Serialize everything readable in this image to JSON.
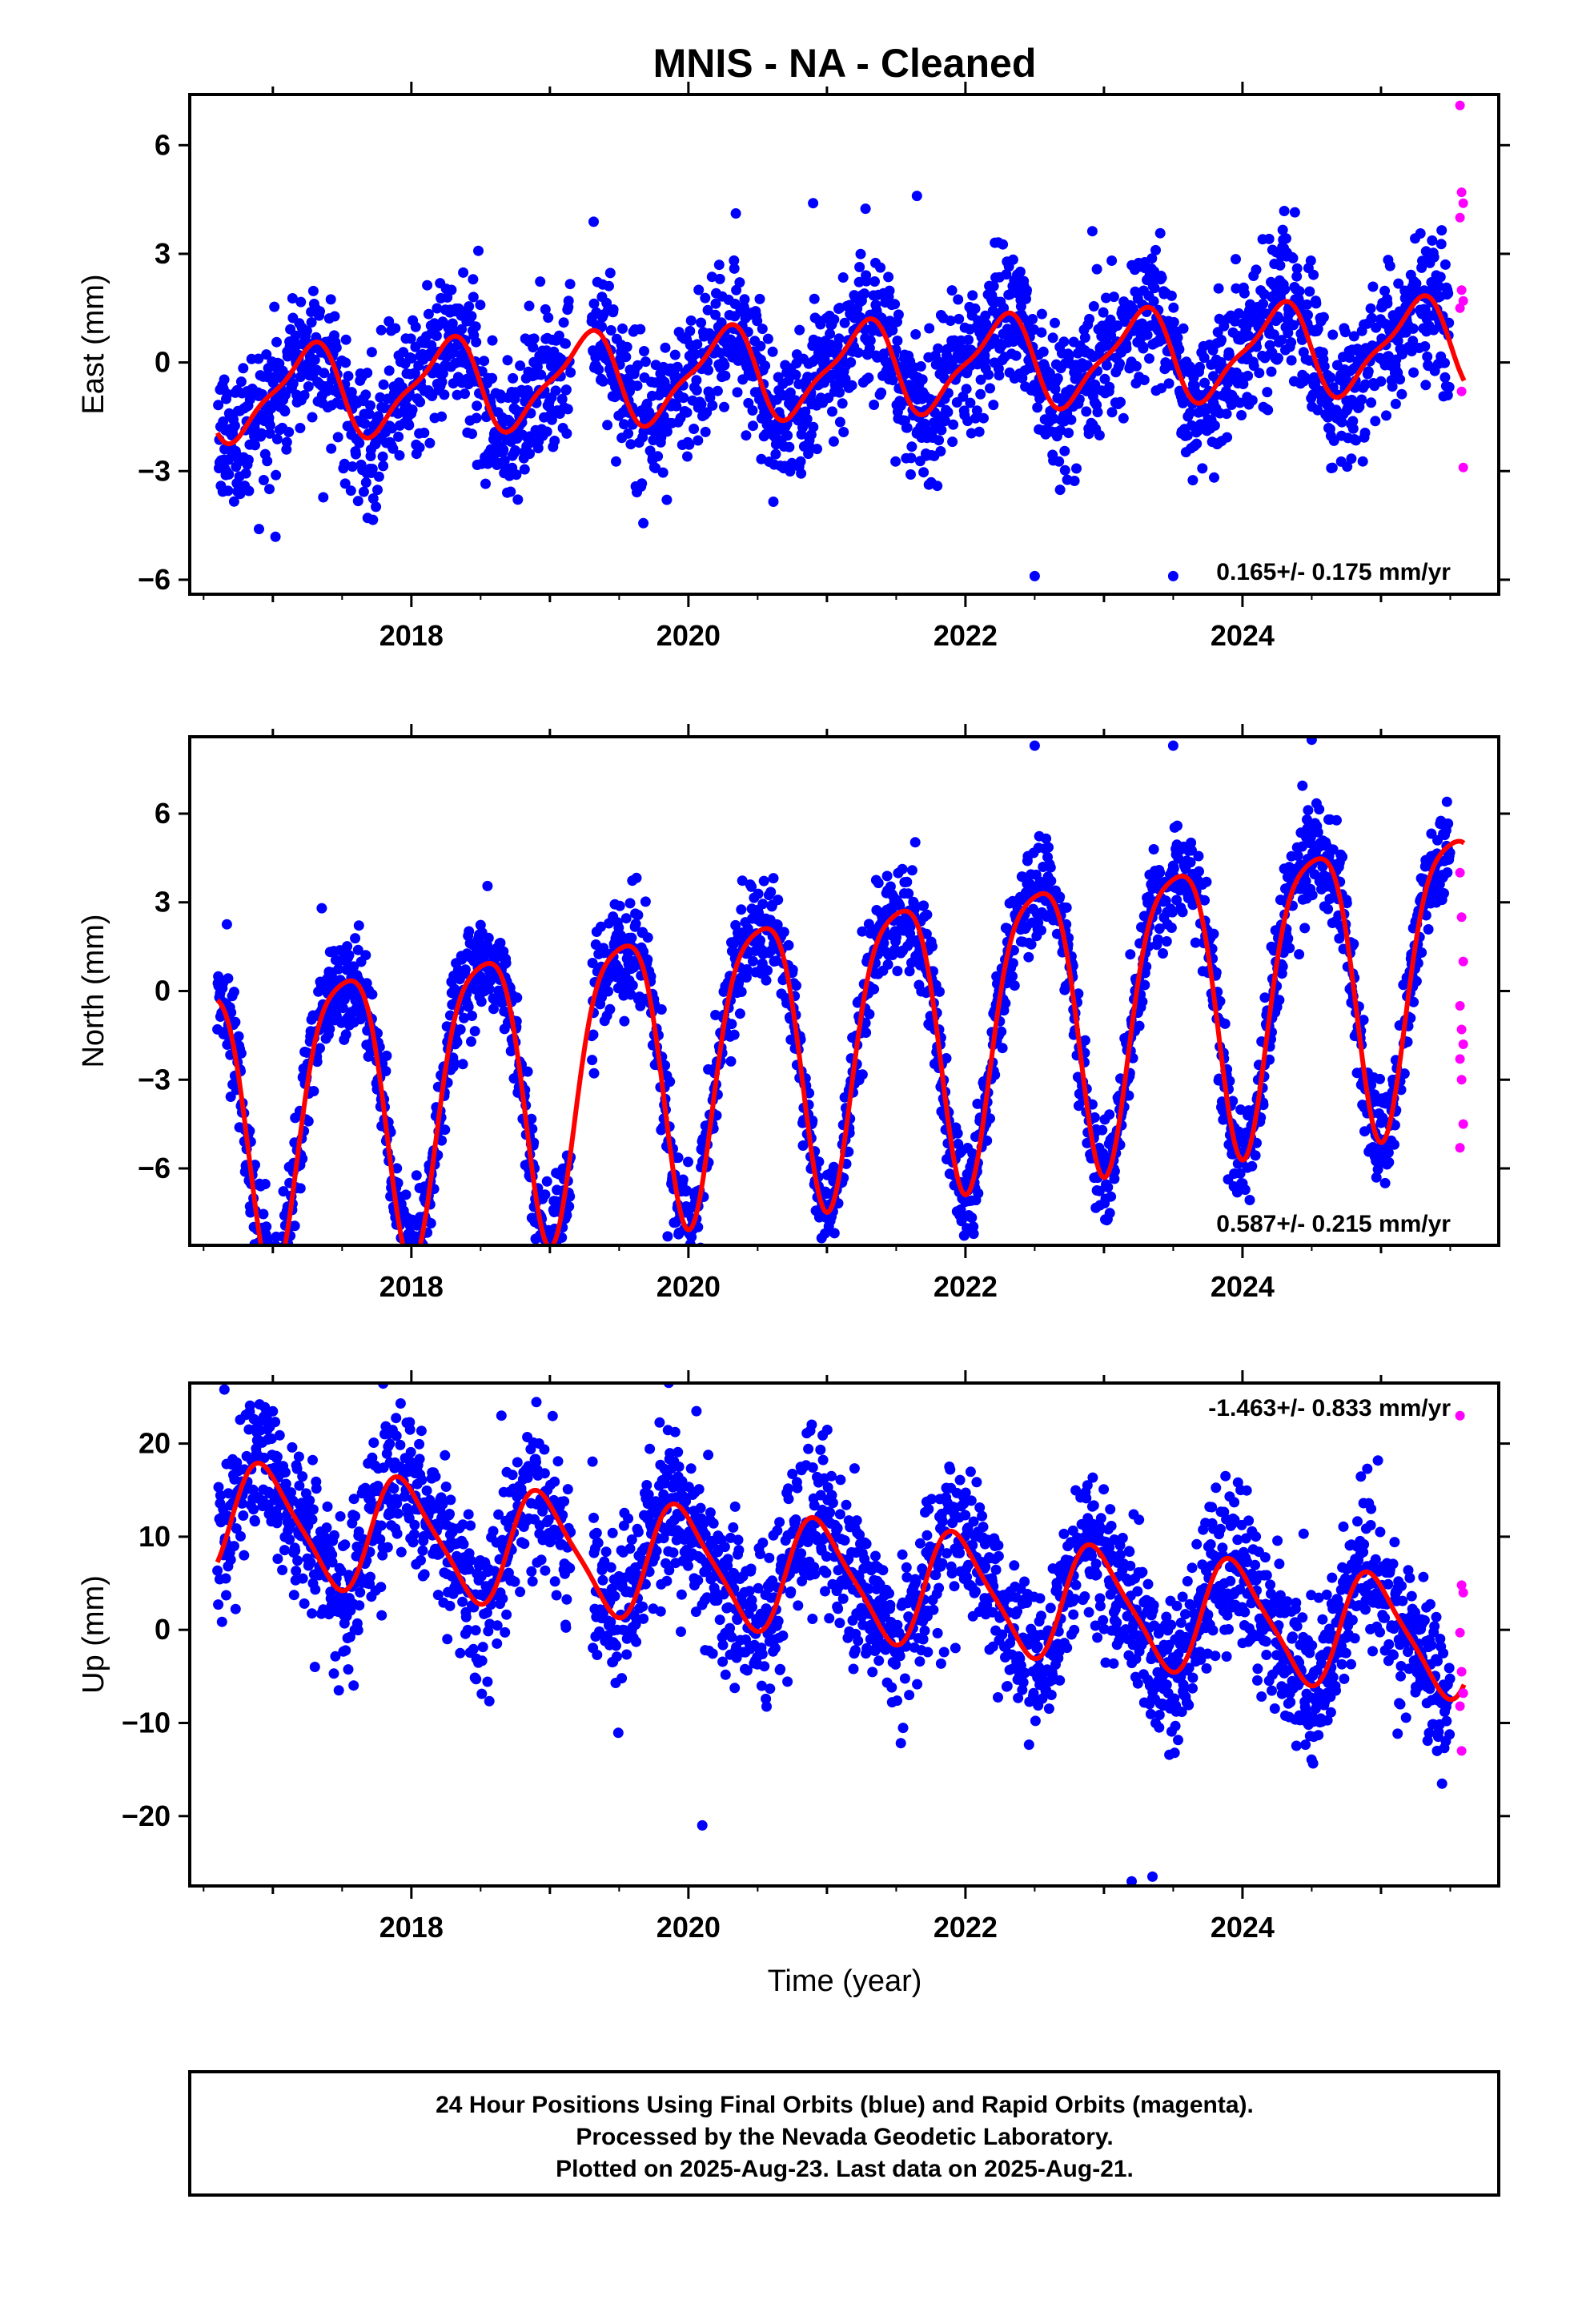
{
  "figure": {
    "title": "MNIS  - NA - Cleaned",
    "x_axis_label": "Time (year)",
    "footer_lines": [
      "24 Hour Positions Using Final Orbits (blue) and Rapid Orbits (magenta).",
      "Processed by the Nevada Geodetic Laboratory.",
      "Plotted on 2025-Aug-23. Last data on 2025-Aug-21."
    ]
  },
  "colors": {
    "final_orbits": "#0000ff",
    "rapid_orbits": "#ff00ff",
    "model_fit": "#ff0000",
    "frame": "#000000"
  },
  "chart_data": [
    {
      "type": "scatter",
      "component": "East",
      "ylabel": "East (mm)",
      "xlim": [
        2016.4,
        2025.85
      ],
      "ylim": [
        -6.4,
        7.4
      ],
      "yticks": [
        -6,
        -3,
        0,
        3,
        6
      ],
      "xticks": [
        2018,
        2020,
        2022,
        2024
      ],
      "rate_label": "0.165+/- 0.175 mm/yr",
      "fit": {
        "trend": 0.16,
        "offset": -0.2,
        "annual_amp": 1.2,
        "annual_phase": 0.0,
        "semi_amp": 0.35,
        "semi_phase": 0.25,
        "scatter": 1.0
      },
      "data_start": 2016.6,
      "final_end": 2025.5,
      "rapid_values": [
        7.1,
        4.7,
        4.4,
        4.0,
        2.0,
        1.7,
        1.5,
        -0.8,
        -2.9
      ],
      "extremes": [
        [
          2021.65,
          4.6
        ],
        [
          2020.9,
          4.4
        ],
        [
          2022.5,
          -5.9
        ],
        [
          2023.5,
          -5.9
        ],
        [
          2016.9,
          -4.6
        ]
      ]
    },
    {
      "type": "scatter",
      "component": "North",
      "ylabel": "North (mm)",
      "xlim": [
        2016.4,
        2025.85
      ],
      "ylim": [
        -8.6,
        8.6
      ],
      "yticks": [
        -6,
        -3,
        0,
        3,
        6
      ],
      "xticks": [
        2018,
        2020,
        2022,
        2024
      ],
      "rate_label": "0.587+/- 0.215 mm/yr",
      "fit": {
        "trend": 0.59,
        "offset": -1.6,
        "annual_amp": 4.9,
        "annual_phase": 0.26,
        "semi_amp": 1.0,
        "semi_phase": 0.12,
        "scatter": 0.9
      },
      "data_start": 2016.6,
      "final_end": 2025.5,
      "rapid_values": [
        4.0,
        2.5,
        1.0,
        -0.5,
        -1.3,
        -1.8,
        -2.3,
        -3.0,
        -4.5,
        -5.3
      ],
      "extremes": [
        [
          2022.5,
          8.3
        ],
        [
          2023.5,
          8.3
        ],
        [
          2024.5,
          8.5
        ],
        [
          2019.85,
          -8.3
        ],
        [
          2017.9,
          -7.9
        ]
      ]
    },
    {
      "type": "scatter",
      "component": "Up",
      "ylabel": "Up (mm)",
      "xlim": [
        2016.4,
        2025.85
      ],
      "ylim": [
        -27.5,
        26.5
      ],
      "yticks": [
        -20,
        -10,
        0,
        10,
        20
      ],
      "xticks": [
        2018,
        2020,
        2022,
        2024
      ],
      "rate_label": "-1.463+/- 0.833 mm/yr",
      "fit": {
        "trend": -1.46,
        "offset": 5.5,
        "annual_amp": 6.0,
        "annual_phase": 0.7,
        "semi_amp": 1.2,
        "semi_phase": 0.2,
        "scatter": 4.2
      },
      "data_start": 2016.6,
      "final_end": 2025.5,
      "rapid_values": [
        23.0,
        4.8,
        4.0,
        -0.3,
        -4.5,
        -6.8,
        -8.2,
        -13.0
      ],
      "extremes": [
        [
          2016.65,
          25.8
        ],
        [
          2018.65,
          23.0
        ],
        [
          2023.2,
          -27.0
        ],
        [
          2023.35,
          -26.5
        ],
        [
          2020.1,
          -21.0
        ]
      ]
    }
  ]
}
